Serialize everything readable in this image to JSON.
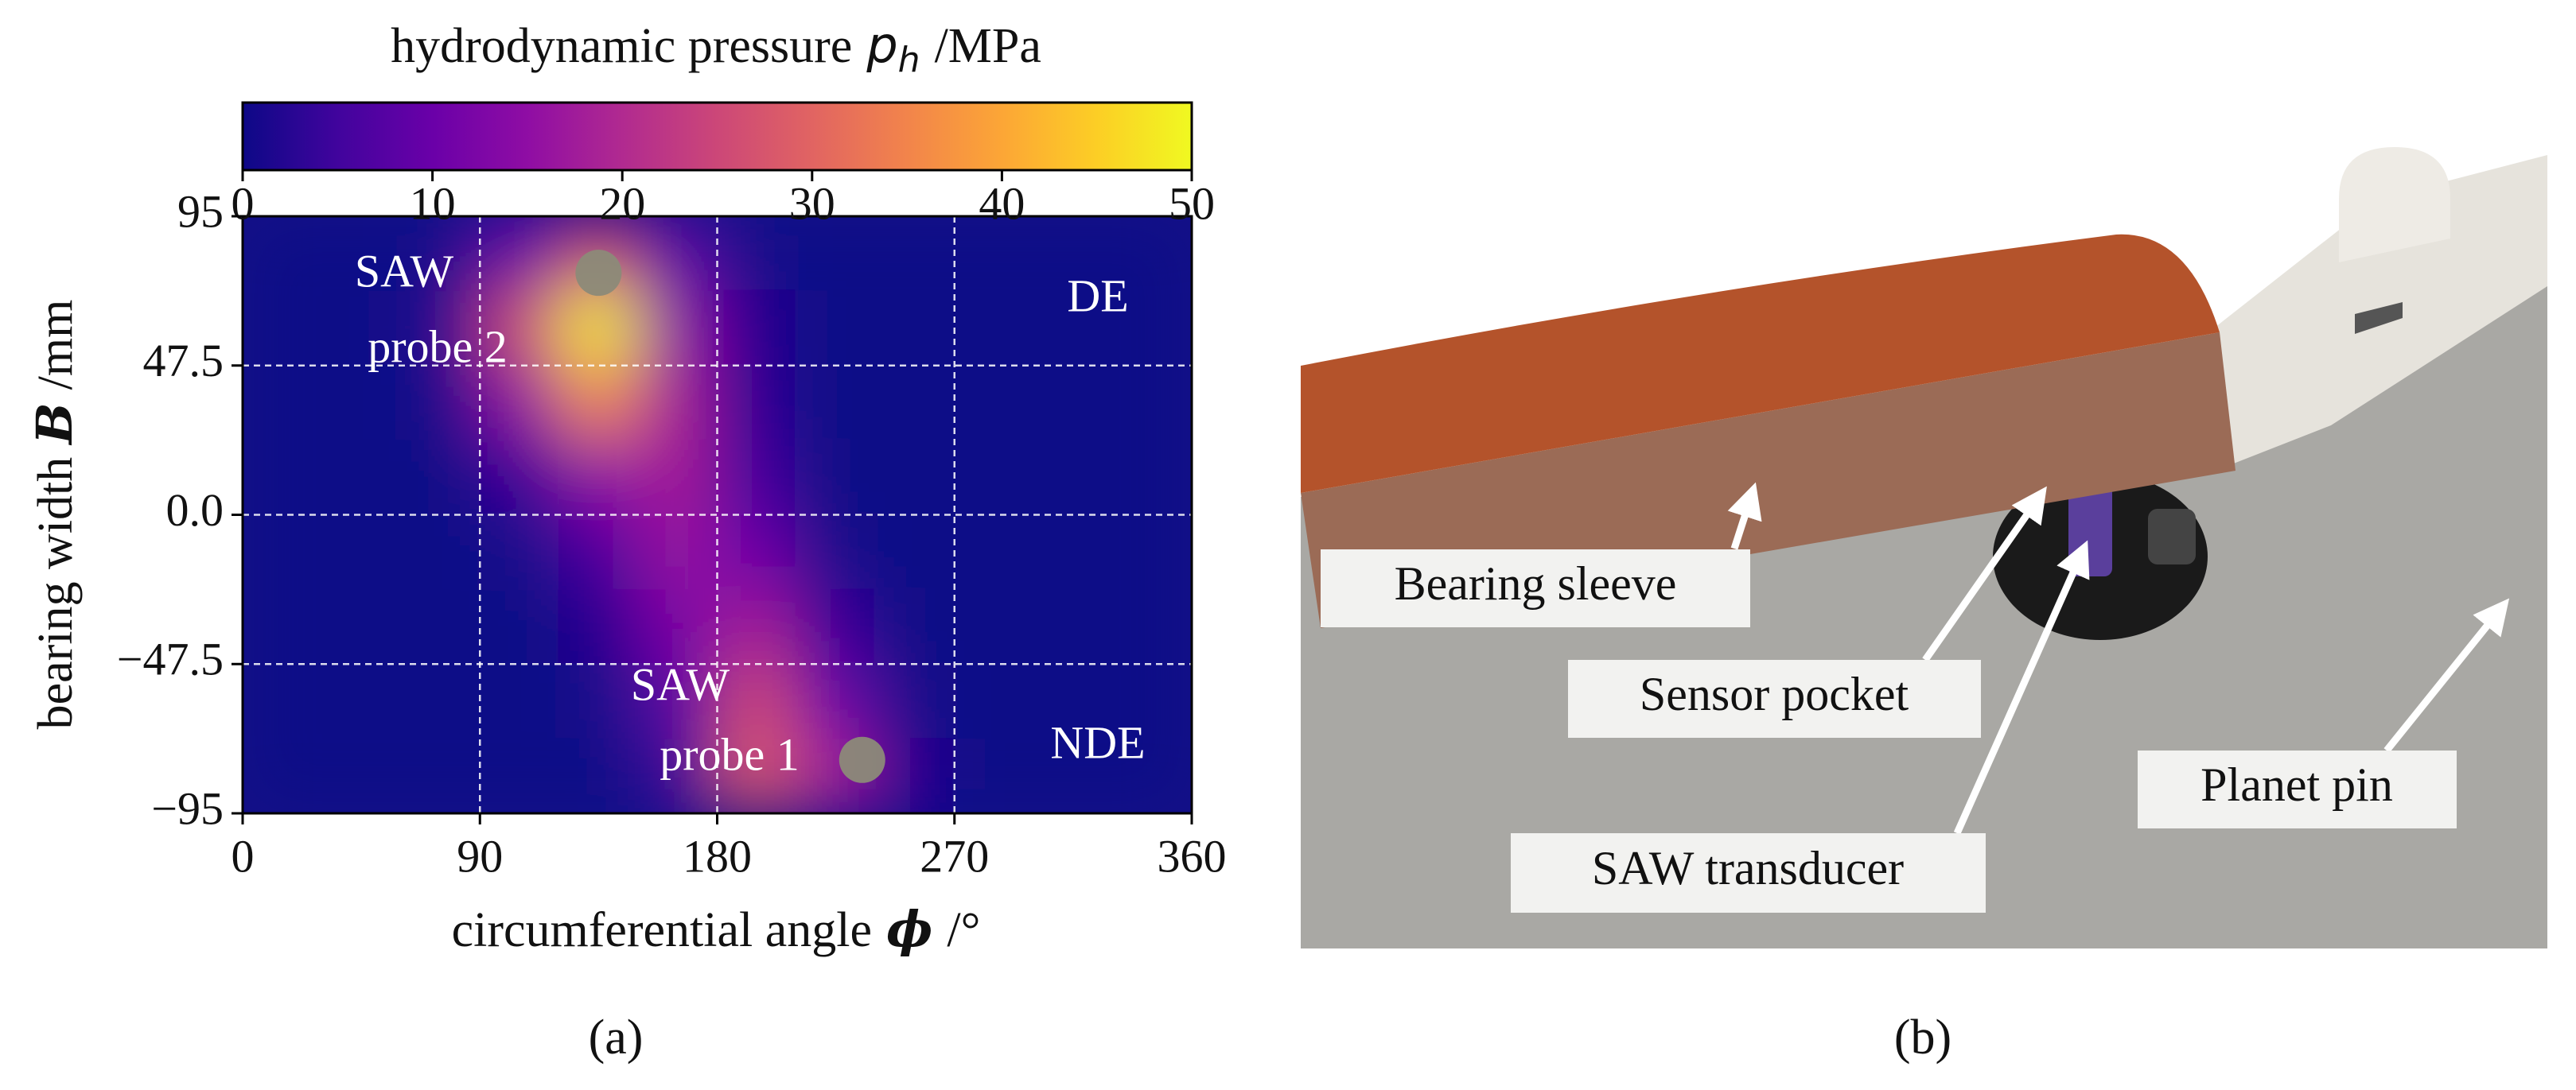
{
  "chart_data": {
    "type": "heatmap",
    "colorbar": {
      "label": [
        "hydrodynamic pressure",
        "p",
        "h",
        "/MPa"
      ],
      "lim": [
        0,
        50
      ],
      "ticks": [
        0,
        10,
        20,
        30,
        40,
        50
      ],
      "colormap": "plasma"
    },
    "xlabel": [
      "circumferential angle",
      "ϕ",
      "/°"
    ],
    "ylabel": [
      "bearing width",
      "B",
      "/mm"
    ],
    "xlim": [
      0,
      360
    ],
    "ylim": [
      -95,
      95
    ],
    "xticks": [
      0,
      90,
      180,
      270,
      360
    ],
    "yticks": [
      {
        "value": -95,
        "label": "−95"
      },
      {
        "value": -47.5,
        "label": "−47.5"
      },
      {
        "value": 0,
        "label": "0.0"
      },
      47.5,
      95
    ],
    "grid": true,
    "x": [
      15,
      45,
      75,
      105,
      135,
      165,
      195,
      225,
      255,
      285,
      315,
      345
    ],
    "y": [
      83.125,
      59.375,
      35.625,
      11.875,
      -11.875,
      -35.625,
      -59.375,
      -83.125
    ],
    "z": [
      [
        0,
        0,
        1,
        10,
        25,
        8,
        1,
        0,
        0,
        0,
        0,
        0
      ],
      [
        0,
        0,
        2,
        25,
        48,
        15,
        2,
        0,
        0,
        0,
        0,
        0
      ],
      [
        0,
        0,
        1,
        15,
        35,
        18,
        3,
        0,
        0,
        0,
        0,
        0
      ],
      [
        0,
        0,
        0,
        4,
        15,
        18,
        5,
        0,
        0,
        0,
        0,
        0
      ],
      [
        0,
        0,
        0,
        1,
        6,
        16,
        10,
        1,
        0,
        0,
        0,
        0
      ],
      [
        0,
        0,
        0,
        0,
        2,
        12,
        18,
        4,
        0,
        0,
        0,
        0
      ],
      [
        0,
        0,
        0,
        0,
        1,
        8,
        25,
        10,
        1,
        0,
        0,
        0
      ],
      [
        0,
        0,
        0,
        0,
        0,
        4,
        28,
        18,
        2,
        0,
        0,
        0
      ]
    ],
    "markers": [
      {
        "x": 135,
        "y": 77,
        "color": "#8c8a78"
      },
      {
        "x": 235,
        "y": -78,
        "color": "#8c8a78"
      }
    ],
    "annotations": [
      "SAW",
      "probe 2",
      "DE",
      "SAW",
      "probe 1",
      "NDE"
    ]
  },
  "panel_b": {
    "labels": [
      "Bearing sleeve",
      "Sensor pocket",
      "SAW transducer",
      "Planet pin"
    ]
  },
  "captions": [
    "(a)",
    "(b)"
  ]
}
